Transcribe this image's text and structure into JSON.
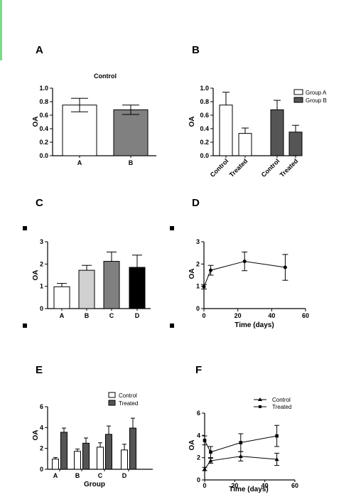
{
  "panels": [
    {
      "id": "A",
      "label": "A"
    },
    {
      "id": "B",
      "label": "B"
    },
    {
      "id": "C",
      "label": "C"
    },
    {
      "id": "D",
      "label": "D"
    },
    {
      "id": "E",
      "label": "E"
    },
    {
      "id": "F",
      "label": "F"
    }
  ],
  "colors": {
    "white": "#ffffff",
    "light_gray": "#d0d0d0",
    "gray": "#808080",
    "dark_gray": "#555555",
    "black": "#000000",
    "border": "#7fd98a"
  },
  "chart_data": [
    {
      "id": "A",
      "type": "bar",
      "title": "Control",
      "ylabel": "OA",
      "xlabel": "",
      "ylim": [
        0,
        1.0
      ],
      "yticks": [
        "0.0",
        "0.2",
        "0.4",
        "0.6",
        "0.8",
        "1.0"
      ],
      "categories": [
        "A",
        "B"
      ],
      "values": [
        0.75,
        0.68
      ],
      "errors": [
        0.1,
        0.07
      ],
      "fills": [
        "#ffffff",
        "#808080"
      ]
    },
    {
      "id": "B",
      "type": "bar",
      "ylabel": "OA",
      "ylim": [
        0,
        1.0
      ],
      "yticks": [
        "0.0",
        "0.2",
        "0.4",
        "0.6",
        "0.8",
        "1.0"
      ],
      "categories": [
        "Control",
        "Treated",
        "Control",
        "Treated"
      ],
      "values": [
        0.75,
        0.33,
        0.68,
        0.35
      ],
      "errors": [
        0.19,
        0.08,
        0.14,
        0.1
      ],
      "fills": [
        "#ffffff",
        "#ffffff",
        "#555555",
        "#555555"
      ],
      "legend": [
        {
          "name": "Group A",
          "color": "#ffffff"
        },
        {
          "name": "Group B",
          "color": "#555555"
        }
      ],
      "legend_position": "top-right"
    },
    {
      "id": "C",
      "type": "bar",
      "ylabel": "OA",
      "ylim": [
        0,
        3
      ],
      "yticks": [
        "0",
        "1",
        "2",
        "3"
      ],
      "categories": [
        "A",
        "B",
        "C",
        "D"
      ],
      "values": [
        0.98,
        1.72,
        2.12,
        1.85
      ],
      "errors": [
        0.15,
        0.22,
        0.42,
        0.55
      ],
      "fills": [
        "#ffffff",
        "#d0d0d0",
        "#808080",
        "#000000"
      ]
    },
    {
      "id": "D",
      "type": "line",
      "ylabel": "OA",
      "xlabel": "Time (days)",
      "xlim": [
        0,
        60
      ],
      "xticks": [
        "0",
        "20",
        "40",
        "60"
      ],
      "ylim": [
        0,
        3
      ],
      "yticks": [
        "0",
        "1",
        "2",
        "3"
      ],
      "x": [
        0,
        4,
        24,
        48
      ],
      "y": [
        0.98,
        1.72,
        2.12,
        1.85
      ],
      "errors": [
        0.1,
        0.22,
        0.42,
        0.58
      ]
    },
    {
      "id": "E",
      "type": "bar",
      "ylabel": "OA",
      "xlabel": "Group",
      "ylim": [
        0,
        6
      ],
      "yticks": [
        "0",
        "2",
        "4",
        "6"
      ],
      "categories": [
        "A",
        "B",
        "C",
        "D"
      ],
      "series": [
        {
          "name": "Control",
          "color": "#ffffff",
          "values": [
            0.98,
            1.72,
            2.12,
            1.85
          ],
          "errors": [
            0.15,
            0.22,
            0.42,
            0.55
          ]
        },
        {
          "name": "Treated",
          "color": "#555555",
          "values": [
            3.55,
            2.5,
            3.35,
            3.95
          ],
          "errors": [
            0.4,
            0.5,
            0.8,
            0.95
          ]
        }
      ],
      "legend_position": "top-right"
    },
    {
      "id": "F",
      "type": "line",
      "ylabel": "OA",
      "xlabel": "Time (days)",
      "xlim": [
        0,
        60
      ],
      "xticks": [
        "0",
        "20",
        "40",
        "60"
      ],
      "ylim": [
        0,
        6
      ],
      "yticks": [
        "0",
        "2",
        "4",
        "6"
      ],
      "series": [
        {
          "name": "Control",
          "marker": "triangle",
          "x": [
            0,
            4,
            24,
            48
          ],
          "y": [
            0.98,
            1.72,
            2.12,
            1.85
          ],
          "errors": [
            0.15,
            0.22,
            0.42,
            0.55
          ]
        },
        {
          "name": "Treated",
          "marker": "square",
          "x": [
            0,
            4,
            24,
            48
          ],
          "y": [
            3.55,
            2.5,
            3.35,
            3.95
          ],
          "errors": [
            0.4,
            0.5,
            0.8,
            0.95
          ]
        }
      ],
      "legend_position": "top-right"
    }
  ]
}
